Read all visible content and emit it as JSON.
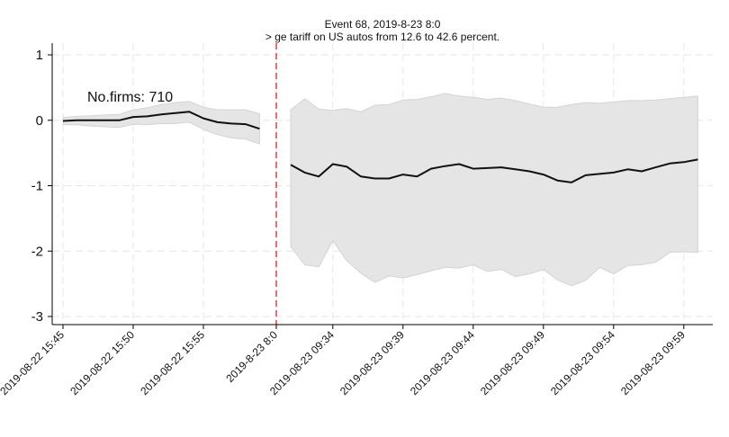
{
  "chart_data": {
    "type": "line",
    "title": "Event 68, 2019-8-23 8:0",
    "subtitle": "> ge tariff on US autos from 12.6 to 42.6 percent.",
    "annotation": "No.firms: 710",
    "xlabel": "",
    "ylabel": "",
    "ylim": [
      -3,
      1
    ],
    "y_ticks": [
      1,
      0,
      -1,
      -2,
      -3
    ],
    "x_tick_labels": [
      "2019-08-22 15:45",
      "2019-08-22 15:50",
      "2019-08-22 15:55",
      "2019-8-23 8:0",
      "2019-08-23 09:34",
      "2019-08-23 09:39",
      "2019-08-23 09:44",
      "2019-08-23 09:49",
      "2019-08-23 09:54",
      "2019-08-23 09:59"
    ],
    "event_tick": "2019-8-23 8:0",
    "grid": true,
    "colors": {
      "line": "#111111",
      "band": "#e5e5e5",
      "band_edge": "#d4d4d4",
      "event_line": "#e32020",
      "grid": "#e6e6e6",
      "axis": "#000000"
    },
    "series": [
      {
        "segment": "before",
        "points": [
          {
            "t": "2019-08-22 15:45",
            "y": -0.01,
            "lo": -0.07,
            "hi": 0.04
          },
          {
            "t": "2019-08-22 15:46",
            "y": 0.0,
            "lo": -0.07,
            "hi": 0.06
          },
          {
            "t": "2019-08-22 15:47",
            "y": 0.0,
            "lo": -0.09,
            "hi": 0.07
          },
          {
            "t": "2019-08-22 15:48",
            "y": 0.0,
            "lo": -0.1,
            "hi": 0.08
          },
          {
            "t": "2019-08-22 15:49",
            "y": 0.0,
            "lo": -0.11,
            "hi": 0.09
          },
          {
            "t": "2019-08-22 15:50",
            "y": 0.05,
            "lo": -0.06,
            "hi": 0.16
          },
          {
            "t": "2019-08-22 15:51",
            "y": 0.06,
            "lo": -0.07,
            "hi": 0.19
          },
          {
            "t": "2019-08-22 15:52",
            "y": 0.09,
            "lo": -0.05,
            "hi": 0.24
          },
          {
            "t": "2019-08-22 15:53",
            "y": 0.11,
            "lo": -0.05,
            "hi": 0.27
          },
          {
            "t": "2019-08-22 15:54",
            "y": 0.13,
            "lo": -0.03,
            "hi": 0.29
          },
          {
            "t": "2019-08-22 15:55",
            "y": 0.03,
            "lo": -0.14,
            "hi": 0.2
          },
          {
            "t": "2019-08-22 15:56",
            "y": -0.03,
            "lo": -0.22,
            "hi": 0.16
          },
          {
            "t": "2019-08-22 15:57",
            "y": -0.05,
            "lo": -0.27,
            "hi": 0.16
          },
          {
            "t": "2019-08-22 15:58",
            "y": -0.06,
            "lo": -0.29,
            "hi": 0.16
          },
          {
            "t": "2019-08-22 15:59",
            "y": -0.13,
            "lo": -0.36,
            "hi": 0.1
          }
        ]
      },
      {
        "segment": "after",
        "points": [
          {
            "t": "2019-08-23 09:31",
            "y": -0.68,
            "lo": -1.93,
            "hi": 0.16
          },
          {
            "t": "2019-08-23 09:32",
            "y": -0.8,
            "lo": -2.21,
            "hi": 0.33
          },
          {
            "t": "2019-08-23 09:33",
            "y": -0.86,
            "lo": -2.24,
            "hi": 0.17
          },
          {
            "t": "2019-08-23 09:34",
            "y": -0.67,
            "lo": -1.84,
            "hi": 0.15
          },
          {
            "t": "2019-08-23 09:35",
            "y": -0.71,
            "lo": -2.15,
            "hi": 0.18
          },
          {
            "t": "2019-08-23 09:36",
            "y": -0.86,
            "lo": -2.34,
            "hi": 0.13
          },
          {
            "t": "2019-08-23 09:37",
            "y": -0.89,
            "lo": -2.48,
            "hi": 0.23
          },
          {
            "t": "2019-08-23 09:38",
            "y": -0.89,
            "lo": -2.38,
            "hi": 0.24
          },
          {
            "t": "2019-08-23 09:39",
            "y": -0.83,
            "lo": -2.41,
            "hi": 0.31
          },
          {
            "t": "2019-08-23 09:40",
            "y": -0.86,
            "lo": -2.36,
            "hi": 0.32
          },
          {
            "t": "2019-08-23 09:41",
            "y": -0.74,
            "lo": -2.3,
            "hi": 0.36
          },
          {
            "t": "2019-08-23 09:42",
            "y": -0.7,
            "lo": -2.25,
            "hi": 0.41
          },
          {
            "t": "2019-08-23 09:43",
            "y": -0.67,
            "lo": -2.26,
            "hi": 0.37
          },
          {
            "t": "2019-08-23 09:44",
            "y": -0.74,
            "lo": -2.21,
            "hi": 0.35
          },
          {
            "t": "2019-08-23 09:45",
            "y": -0.73,
            "lo": -2.31,
            "hi": 0.32
          },
          {
            "t": "2019-08-23 09:46",
            "y": -0.72,
            "lo": -2.28,
            "hi": 0.34
          },
          {
            "t": "2019-08-23 09:47",
            "y": -0.75,
            "lo": -2.39,
            "hi": 0.3
          },
          {
            "t": "2019-08-23 09:48",
            "y": -0.78,
            "lo": -2.35,
            "hi": 0.25
          },
          {
            "t": "2019-08-23 09:49",
            "y": -0.83,
            "lo": -2.28,
            "hi": 0.2
          },
          {
            "t": "2019-08-23 09:50",
            "y": -0.92,
            "lo": -2.44,
            "hi": 0.2
          },
          {
            "t": "2019-08-23 09:51",
            "y": -0.95,
            "lo": -2.53,
            "hi": 0.24
          },
          {
            "t": "2019-08-23 09:52",
            "y": -0.84,
            "lo": -2.45,
            "hi": 0.27
          },
          {
            "t": "2019-08-23 09:53",
            "y": -0.82,
            "lo": -2.25,
            "hi": 0.26
          },
          {
            "t": "2019-08-23 09:54",
            "y": -0.8,
            "lo": -2.35,
            "hi": 0.28
          },
          {
            "t": "2019-08-23 09:55",
            "y": -0.75,
            "lo": -2.22,
            "hi": 0.3
          },
          {
            "t": "2019-08-23 09:56",
            "y": -0.78,
            "lo": -2.21,
            "hi": 0.3
          },
          {
            "t": "2019-08-23 09:57",
            "y": -0.72,
            "lo": -2.17,
            "hi": 0.31
          },
          {
            "t": "2019-08-23 09:58",
            "y": -0.66,
            "lo": -2.02,
            "hi": 0.33
          },
          {
            "t": "2019-08-23 09:59",
            "y": -0.64,
            "lo": -2.01,
            "hi": 0.35
          },
          {
            "t": "2019-08-23 10:00",
            "y": -0.6,
            "lo": -2.02,
            "hi": 0.37
          }
        ]
      }
    ]
  }
}
